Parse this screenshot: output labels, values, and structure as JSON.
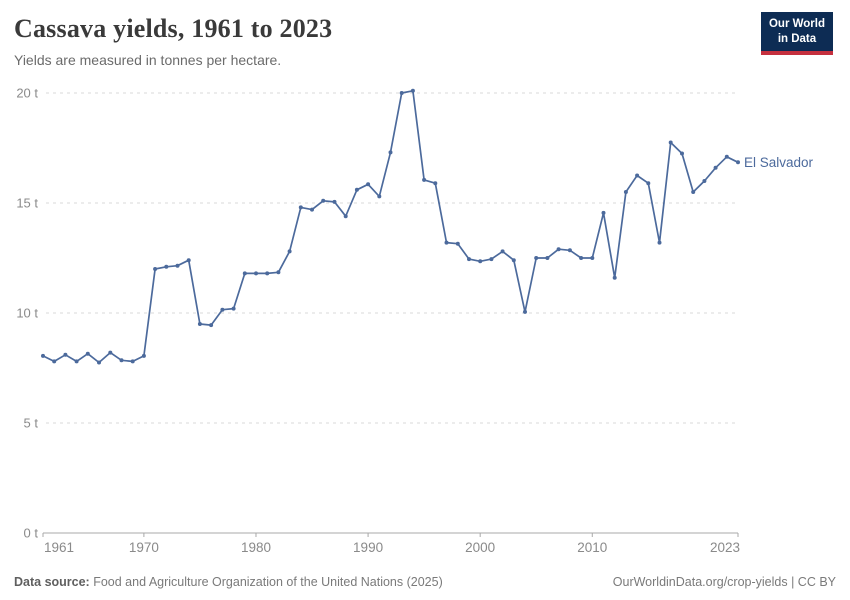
{
  "header": {
    "title": "Cassava yields, 1961 to 2023",
    "subtitle": "Yields are measured in tonnes per hectare.",
    "logo": {
      "line1": "Our World",
      "line2": "in Data"
    }
  },
  "chart_data": {
    "type": "line",
    "title": "Cassava yields, 1961 to 2023",
    "xlabel": "",
    "ylabel": "tonnes per hectare",
    "y_tick_suffix": " t",
    "xlim": [
      1961,
      2023
    ],
    "ylim": [
      0,
      20
    ],
    "x_ticks": [
      1961,
      1970,
      1980,
      1990,
      2000,
      2010,
      2023
    ],
    "y_ticks": [
      0,
      5,
      10,
      15,
      20
    ],
    "grid": "horizontal-dashed",
    "legend": "line-end-label",
    "x": [
      1961,
      1962,
      1963,
      1964,
      1965,
      1966,
      1967,
      1968,
      1969,
      1970,
      1971,
      1972,
      1973,
      1974,
      1975,
      1976,
      1977,
      1978,
      1979,
      1980,
      1981,
      1982,
      1983,
      1984,
      1985,
      1986,
      1987,
      1988,
      1989,
      1990,
      1991,
      1992,
      1993,
      1994,
      1995,
      1996,
      1997,
      1998,
      1999,
      2000,
      2001,
      2002,
      2003,
      2004,
      2005,
      2006,
      2007,
      2008,
      2009,
      2010,
      2011,
      2012,
      2013,
      2014,
      2015,
      2016,
      2017,
      2018,
      2019,
      2020,
      2021,
      2022,
      2023
    ],
    "series": [
      {
        "name": "El Salvador",
        "values": [
          8.05,
          7.8,
          8.1,
          7.8,
          8.15,
          7.75,
          8.2,
          7.85,
          7.8,
          8.05,
          12.0,
          12.1,
          12.15,
          12.4,
          9.5,
          9.45,
          10.15,
          10.2,
          11.8,
          11.8,
          11.8,
          11.85,
          12.8,
          14.8,
          14.7,
          15.1,
          15.05,
          14.4,
          15.6,
          15.85,
          15.3,
          17.3,
          20.0,
          20.1,
          16.05,
          15.9,
          13.2,
          13.15,
          12.45,
          12.35,
          12.45,
          12.8,
          12.4,
          10.05,
          12.5,
          12.5,
          12.9,
          12.85,
          12.5,
          12.5,
          14.55,
          11.6,
          15.5,
          16.25,
          15.9,
          13.2,
          17.75,
          17.25,
          15.5,
          16.0,
          16.6,
          17.1,
          16.85
        ]
      }
    ]
  },
  "footer": {
    "source_label": "Data source:",
    "source_text": "Food and Agriculture Organization of the United Nations (2025)",
    "license_text": "OurWorldinData.org/crop-yields | CC BY"
  },
  "colors": {
    "line": "#4c6a9c",
    "entity_label": "#4c6a9c",
    "gridline": "#dadada",
    "axis_line": "#a8a8a8",
    "axis_text": "#8a8a8a",
    "logo_navy": "#0d2c54",
    "logo_red": "#c5303e"
  }
}
